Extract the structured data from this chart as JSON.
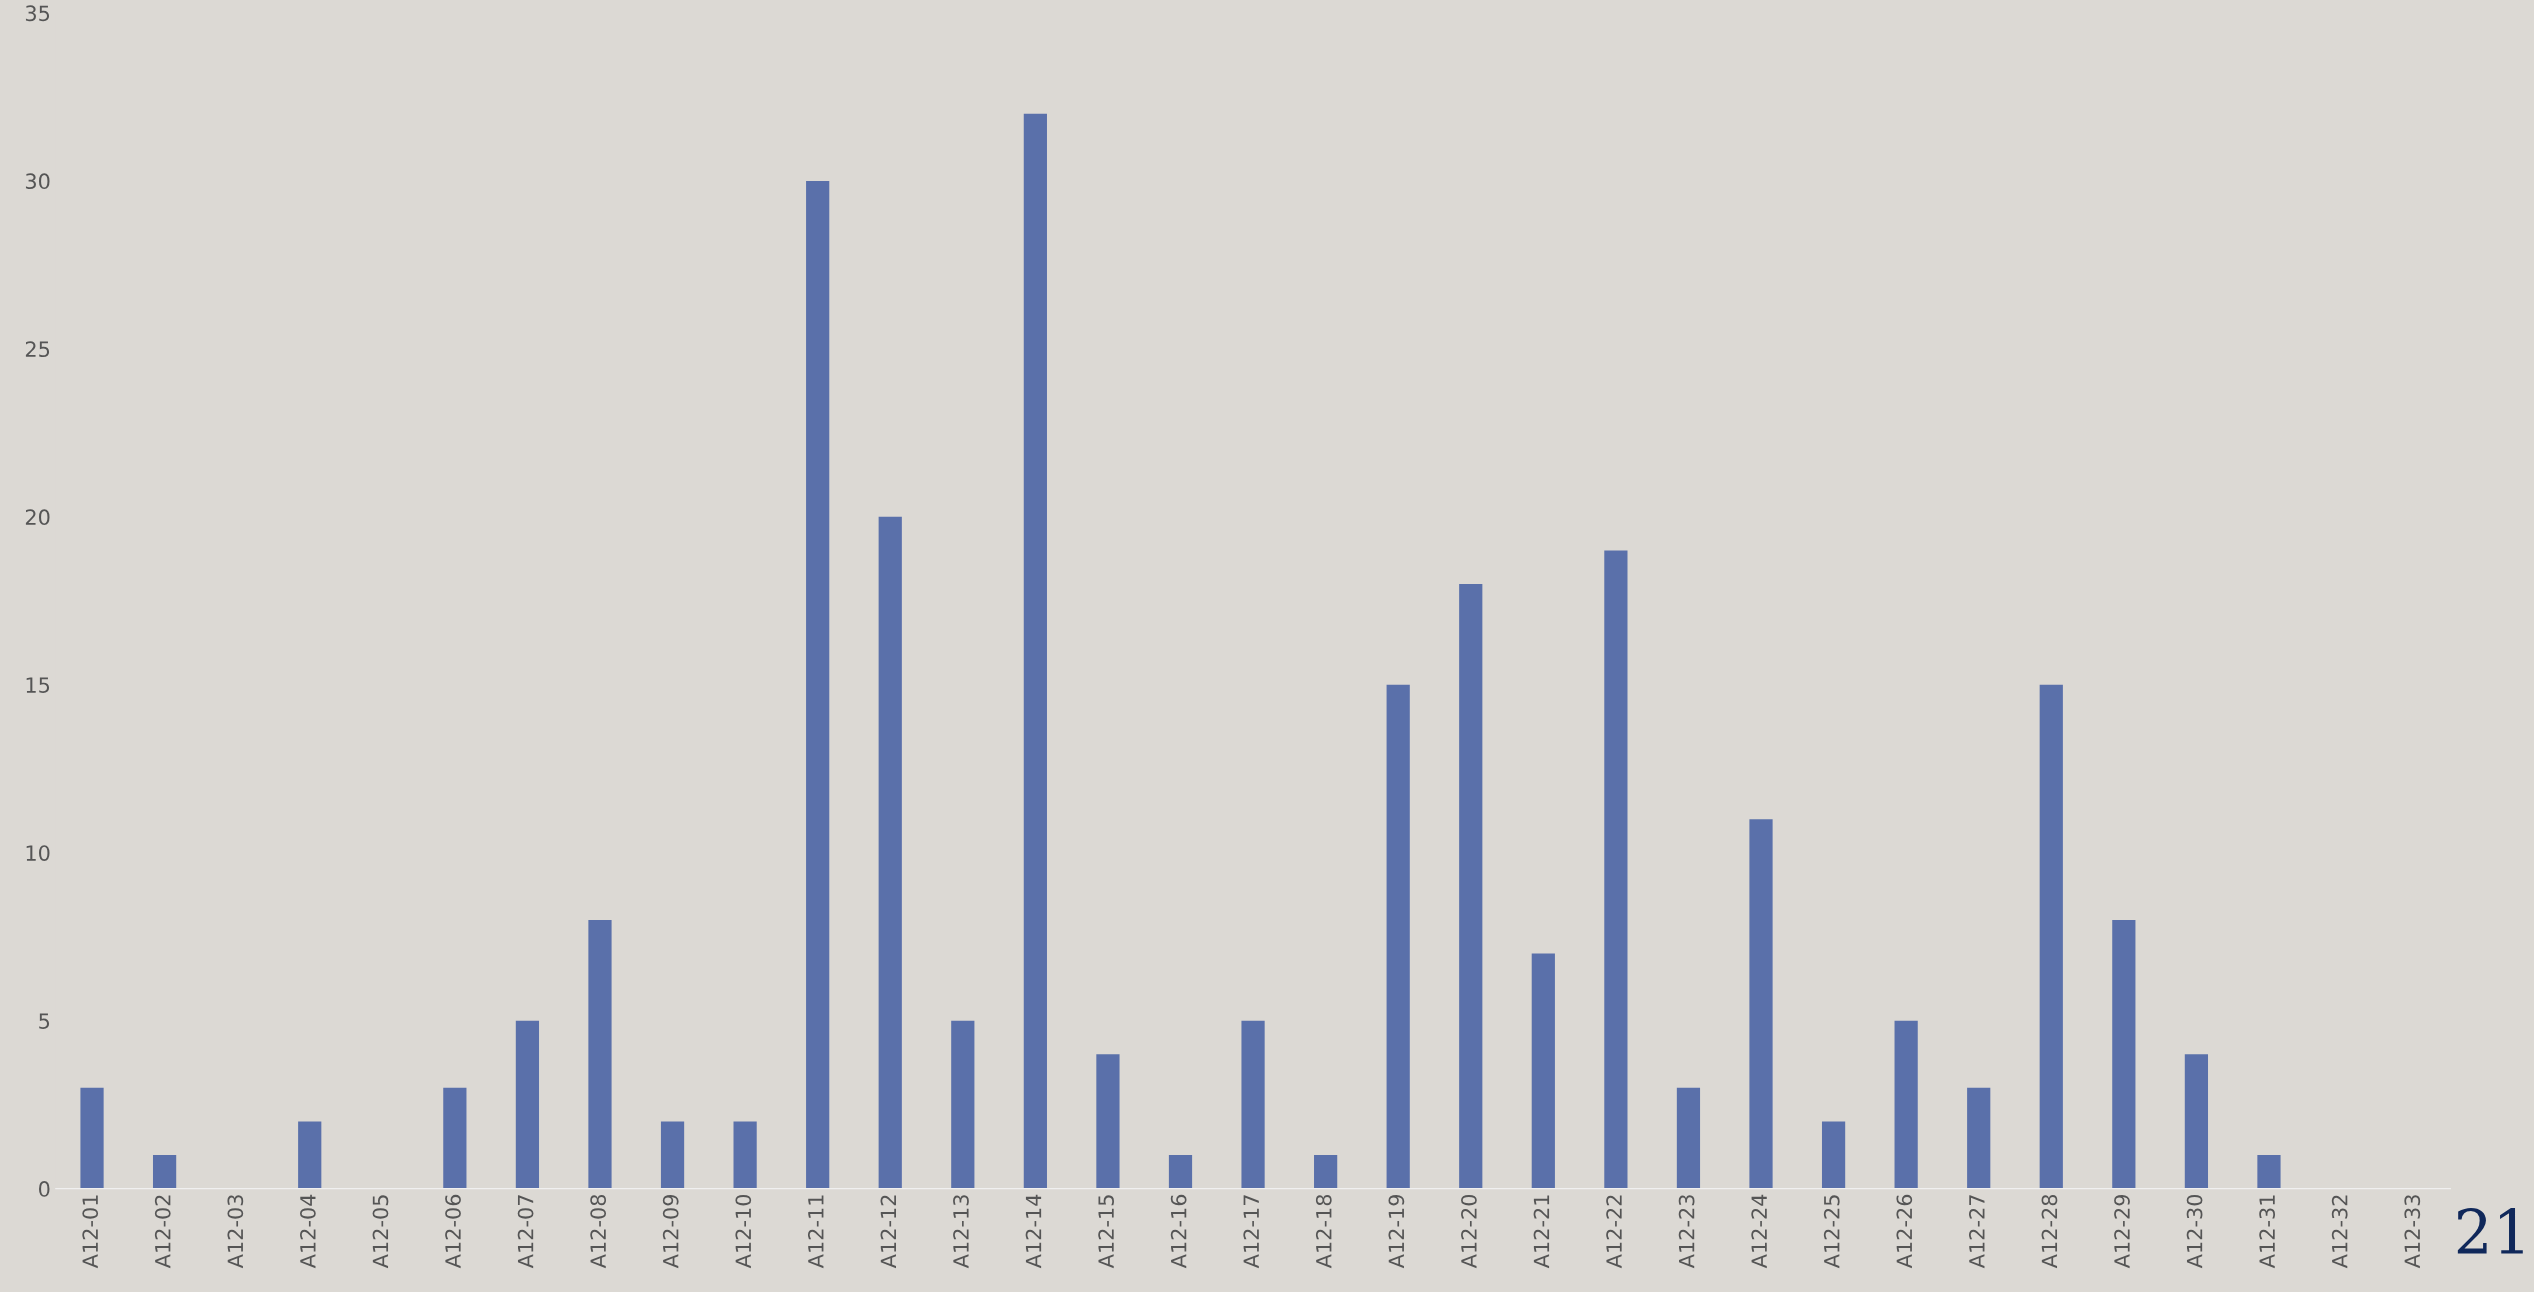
{
  "chart_data": {
    "type": "bar",
    "categories": [
      "A12-01",
      "A12-02",
      "A12-03",
      "A12-04",
      "A12-05",
      "A12-06",
      "A12-07",
      "A12-08",
      "A12-09",
      "A12-10",
      "A12-11",
      "A12-12",
      "A12-13",
      "A12-14",
      "A12-15",
      "A12-16",
      "A12-17",
      "A12-18",
      "A12-19",
      "A12-20",
      "A12-21",
      "A12-22",
      "A12-23",
      "A12-24",
      "A12-25",
      "A12-26",
      "A12-27",
      "A12-28",
      "A12-29",
      "A12-30",
      "A12-31",
      "A12-32",
      "A12-33"
    ],
    "values": [
      3,
      1,
      0,
      2,
      0,
      3,
      5,
      8,
      2,
      2,
      30,
      20,
      5,
      32,
      4,
      1,
      5,
      1,
      15,
      18,
      7,
      19,
      3,
      11,
      2,
      5,
      3,
      15,
      8,
      4,
      1,
      0,
      0
    ],
    "color": "#5a70aa",
    "ylim": [
      0,
      35
    ],
    "yticks": [
      0,
      5,
      10,
      15,
      20,
      25,
      30,
      35
    ],
    "grid": false,
    "legend": false,
    "annotations": [
      "21"
    ]
  }
}
